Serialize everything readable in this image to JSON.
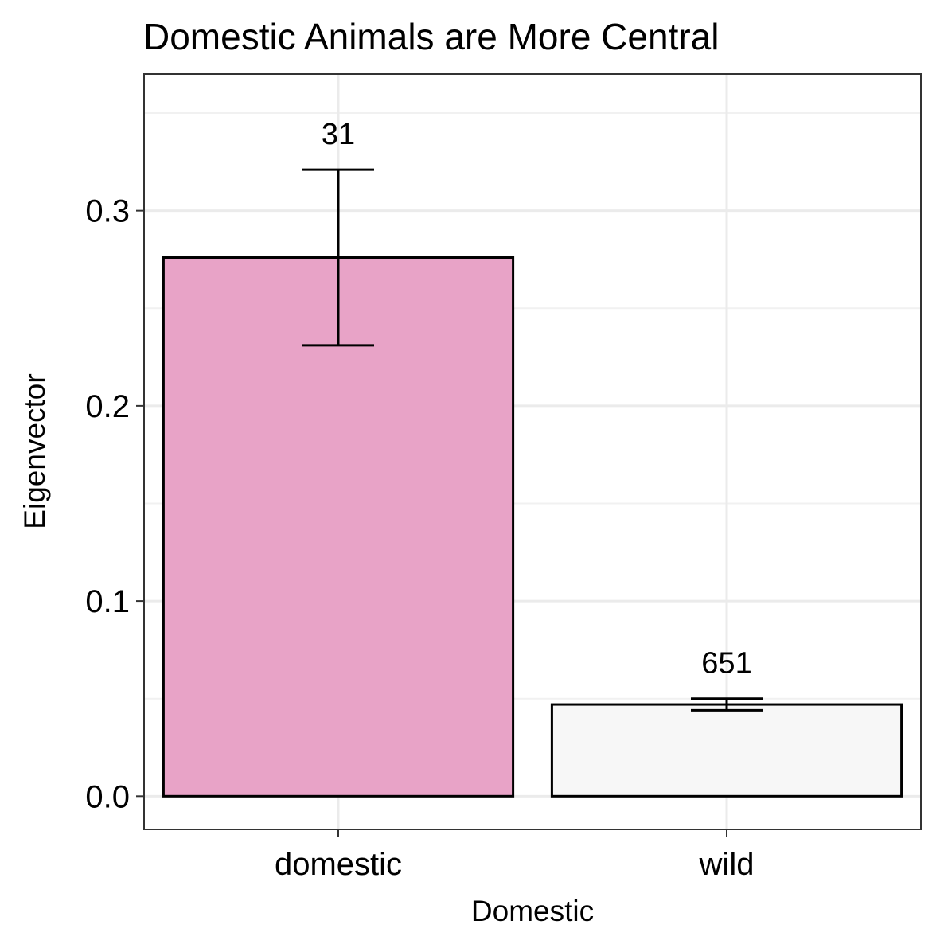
{
  "chart_data": {
    "type": "bar",
    "title": "Domestic Animals are More Central",
    "xlabel": "Domestic",
    "ylabel": "Eigenvector",
    "categories": [
      "domestic",
      "wild"
    ],
    "values": [
      0.276,
      0.047
    ],
    "error_low": [
      0.231,
      0.044
    ],
    "error_high": [
      0.321,
      0.05
    ],
    "data_labels": [
      "31",
      "651"
    ],
    "ylim": [
      -0.017,
      0.37
    ],
    "yticks": [
      0.0,
      0.1,
      0.2,
      0.3
    ],
    "ytick_labels": [
      "0.0",
      "0.1",
      "0.2",
      "0.3"
    ],
    "bar_colors": [
      "#e8a3c7",
      "#f7f7f7"
    ],
    "grid": true,
    "legend": "none"
  }
}
